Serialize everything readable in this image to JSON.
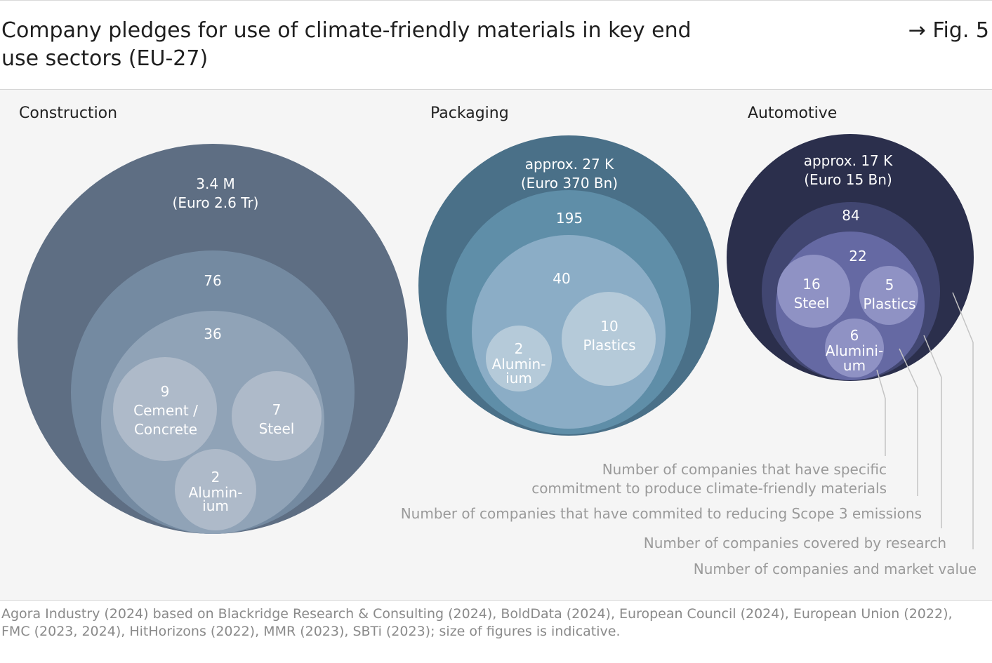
{
  "header": {
    "title": "Company pledges for use of climate-friendly materials in key end use sectors (EU-27)",
    "fig_ref": "→ Fig. 5"
  },
  "colors": {
    "construction": [
      "#5e6e83",
      "#748aa1",
      "#90a3b7",
      "#aebac9"
    ],
    "packaging": [
      "#4a7088",
      "#5f8ea8",
      "#8badc6",
      "#b5cad9"
    ],
    "automotive": [
      "#2b2f4c",
      "#414671",
      "#6569a3",
      "#8f92c4"
    ],
    "legend_text": "#9a9a9a",
    "leader_line": "#c4c4c4"
  },
  "sectors": [
    {
      "label": "Construction",
      "total": "3.4 M",
      "total_value": "(Euro 2.6 Tr)",
      "scope3": "76",
      "research": "36",
      "materials": [
        {
          "count": "9",
          "label": "Cement /",
          "label2": "Concrete"
        },
        {
          "count": "7",
          "label": "Steel"
        },
        {
          "count": "2",
          "label": "Alumin-",
          "label2": "ium"
        }
      ]
    },
    {
      "label": "Packaging",
      "total": "approx. 27 K",
      "total_value": "(Euro 370 Bn)",
      "scope3": "195",
      "research": "40",
      "materials": [
        {
          "count": "2",
          "label": "Alumin-",
          "label2": "ium"
        },
        {
          "count": "10",
          "label": "Plastics"
        }
      ]
    },
    {
      "label": "Automotive",
      "total": "approx. 17 K",
      "total_value": "(Euro 15 Bn)",
      "scope3": "84",
      "research": "22",
      "materials": [
        {
          "count": "16",
          "label": "Steel"
        },
        {
          "count": "5",
          "label": "Plastics"
        },
        {
          "count": "6",
          "label": "Alumini-",
          "label2": "um"
        }
      ]
    }
  ],
  "legend": {
    "specific_commitment_line1": "Number of companies that have specific",
    "specific_commitment_line2": "commitment to produce climate-friendly materials",
    "scope3": "Number of companies that have commited to reducing Scope 3 emissions",
    "research": "Number of companies covered by research",
    "market": "Number of companies and market value"
  },
  "source": {
    "line1": "Agora Industry (2024) based on Blackridge Research & Consulting (2024), BoldData (2024), European Council (2024), European Union (2022),",
    "line2": "FMC (2023, 2024), HitHorizons (2022), MMR (2023), SBTi (2023); size of figures is indicative."
  }
}
